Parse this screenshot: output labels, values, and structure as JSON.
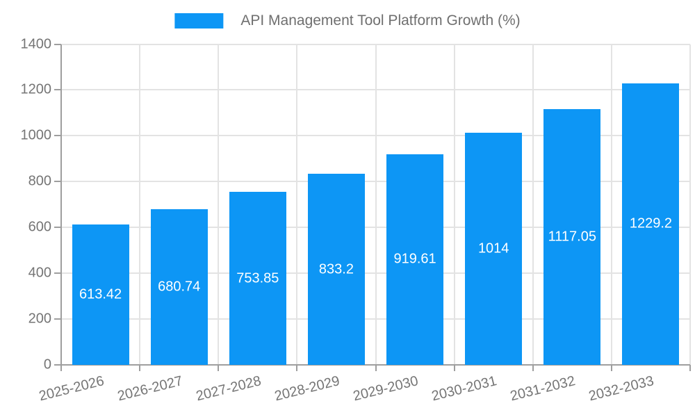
{
  "chart_data": {
    "type": "bar",
    "title": "API Management Tool Platform Growth (%)",
    "categories": [
      "2025-2026",
      "2026-2027",
      "2027-2028",
      "2028-2029",
      "2029-2030",
      "2030-2031",
      "2031-2032",
      "2032-2033"
    ],
    "values": [
      613.42,
      680.74,
      753.85,
      833.2,
      919.61,
      1014,
      1117.05,
      1229.2
    ],
    "value_labels": [
      "613.42",
      "680.74",
      "753.85",
      "833.2",
      "919.61",
      "1014",
      "1117.05",
      "1229.2"
    ],
    "xlabel": "",
    "ylabel": "",
    "ylim": [
      0,
      1400
    ],
    "yticks": [
      0,
      200,
      400,
      600,
      800,
      1000,
      1200,
      1400
    ],
    "grid": true,
    "legend_position": "top-center",
    "value_label_position": "inside-center",
    "x_label_rotation_deg": -14,
    "colors": {
      "bar": "#0D96F5",
      "value_label": "#FFFFFF",
      "axis_line": "#9E9E9E",
      "grid_line": "#E3E3E3",
      "tick_text": "#757575",
      "legend_text": "#6F6F6F",
      "background": "#FFFFFF"
    }
  }
}
